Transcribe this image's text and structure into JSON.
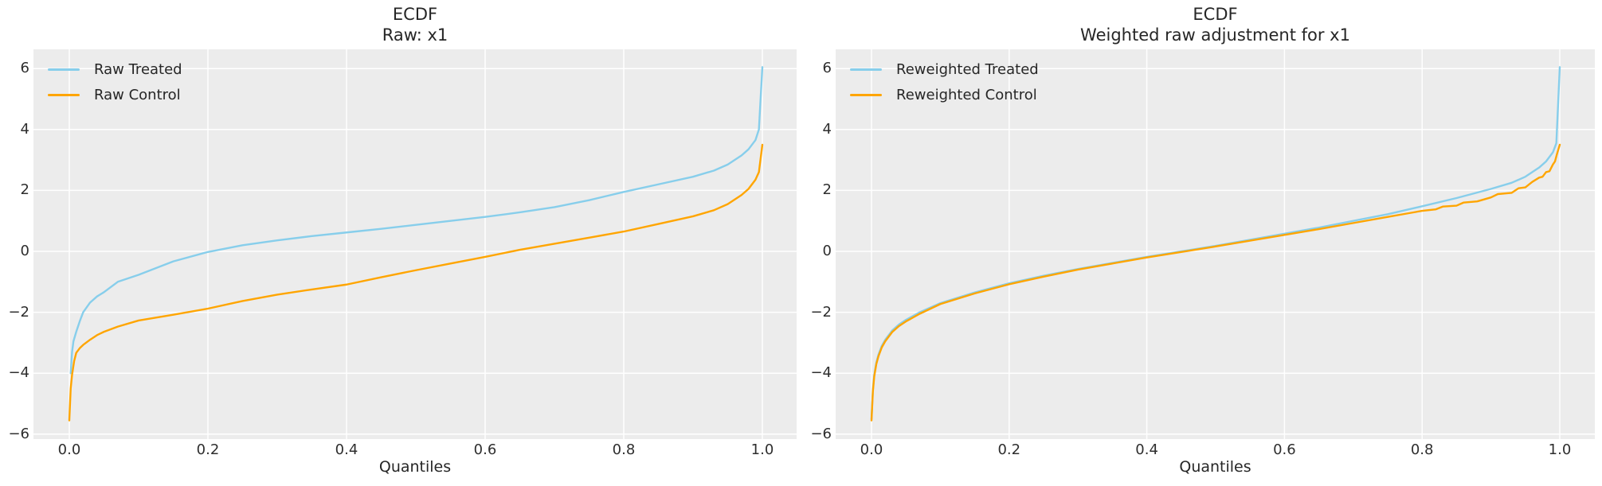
{
  "colors": {
    "figure_background": "#ffffff",
    "plot_background": "#ececec",
    "gridline": "#ffffff",
    "treated_line": "#87ceeb",
    "control_line": "#ffa500",
    "text": "#262626"
  },
  "chart_data": [
    {
      "type": "line",
      "title": "ECDF",
      "subtitle": "Raw: x1",
      "xlabel": "Quantiles",
      "ylabel": "",
      "xlim": [
        -0.05,
        1.05
      ],
      "ylim": [
        -6.2,
        6.6
      ],
      "grid": true,
      "legend_position": "upper left",
      "x_tick_values": [
        0.0,
        0.2,
        0.4,
        0.6,
        0.8,
        1.0
      ],
      "x_tick_labels": [
        "0.0",
        "0.2",
        "0.4",
        "0.6",
        "0.8",
        "1.0"
      ],
      "y_tick_values": [
        6,
        4,
        2,
        0,
        -2,
        -4,
        -6
      ],
      "y_tick_labels": [
        "6",
        "4",
        "2",
        "0",
        "−2",
        "−4",
        "−6"
      ],
      "series": [
        {
          "name": "Raw Treated",
          "color": "#87ceeb",
          "x": [
            0.002,
            0.004,
            0.006,
            0.01,
            0.015,
            0.02,
            0.03,
            0.04,
            0.05,
            0.07,
            0.1,
            0.15,
            0.2,
            0.25,
            0.3,
            0.35,
            0.4,
            0.45,
            0.5,
            0.55,
            0.6,
            0.65,
            0.7,
            0.75,
            0.8,
            0.85,
            0.9,
            0.93,
            0.95,
            0.97,
            0.98,
            0.99,
            0.995,
            1.0
          ],
          "y": [
            -4.0,
            -3.3,
            -2.95,
            -2.64,
            -2.3,
            -2.0,
            -1.68,
            -1.48,
            -1.34,
            -1.0,
            -0.77,
            -0.33,
            -0.02,
            0.2,
            0.36,
            0.5,
            0.62,
            0.74,
            0.87,
            1.0,
            1.13,
            1.28,
            1.45,
            1.68,
            1.95,
            2.2,
            2.45,
            2.65,
            2.85,
            3.15,
            3.35,
            3.65,
            4.0,
            6.05
          ]
        },
        {
          "name": "Raw Control",
          "color": "#ffa500",
          "x": [
            0.0,
            0.002,
            0.004,
            0.007,
            0.01,
            0.015,
            0.02,
            0.03,
            0.04,
            0.05,
            0.07,
            0.1,
            0.15,
            0.2,
            0.25,
            0.3,
            0.35,
            0.4,
            0.45,
            0.5,
            0.55,
            0.6,
            0.65,
            0.7,
            0.75,
            0.8,
            0.85,
            0.9,
            0.93,
            0.95,
            0.97,
            0.98,
            0.99,
            0.995,
            1.0
          ],
          "y": [
            -5.55,
            -4.5,
            -4.05,
            -3.6,
            -3.33,
            -3.18,
            -3.07,
            -2.9,
            -2.75,
            -2.64,
            -2.47,
            -2.27,
            -2.08,
            -1.88,
            -1.63,
            -1.42,
            -1.25,
            -1.09,
            -0.85,
            -0.62,
            -0.4,
            -0.18,
            0.05,
            0.25,
            0.45,
            0.65,
            0.9,
            1.15,
            1.35,
            1.55,
            1.85,
            2.05,
            2.35,
            2.6,
            3.5
          ]
        }
      ]
    },
    {
      "type": "line",
      "title": "ECDF",
      "subtitle": "Weighted raw adjustment for x1",
      "xlabel": "Quantiles",
      "ylabel": "",
      "xlim": [
        -0.05,
        1.05
      ],
      "ylim": [
        -6.2,
        6.6
      ],
      "grid": true,
      "legend_position": "upper left",
      "x_tick_values": [
        0.0,
        0.2,
        0.4,
        0.6,
        0.8,
        1.0
      ],
      "x_tick_labels": [
        "0.0",
        "0.2",
        "0.4",
        "0.6",
        "0.8",
        "1.0"
      ],
      "y_tick_values": [
        6,
        4,
        2,
        0,
        -2,
        -4,
        -6
      ],
      "y_tick_labels": [
        "6",
        "4",
        "2",
        "0",
        "−2",
        "−4",
        "−6"
      ],
      "series": [
        {
          "name": "Reweighted Treated",
          "color": "#87ceeb",
          "x": [
            0.0,
            0.002,
            0.004,
            0.007,
            0.01,
            0.015,
            0.02,
            0.03,
            0.04,
            0.05,
            0.07,
            0.1,
            0.15,
            0.2,
            0.25,
            0.3,
            0.35,
            0.4,
            0.45,
            0.5,
            0.55,
            0.6,
            0.65,
            0.7,
            0.75,
            0.8,
            0.85,
            0.9,
            0.93,
            0.95,
            0.97,
            0.98,
            0.99,
            0.995,
            1.0
          ],
          "y": [
            -5.5,
            -4.55,
            -4.05,
            -3.65,
            -3.4,
            -3.1,
            -2.9,
            -2.6,
            -2.4,
            -2.25,
            -2.0,
            -1.7,
            -1.35,
            -1.05,
            -0.8,
            -0.58,
            -0.38,
            -0.18,
            0.0,
            0.18,
            0.38,
            0.58,
            0.78,
            1.0,
            1.22,
            1.48,
            1.75,
            2.05,
            2.25,
            2.45,
            2.75,
            2.95,
            3.25,
            3.55,
            6.05
          ]
        },
        {
          "name": "Reweighted Control",
          "color": "#ffa500",
          "x": [
            0.0,
            0.002,
            0.004,
            0.007,
            0.01,
            0.015,
            0.02,
            0.03,
            0.04,
            0.05,
            0.07,
            0.1,
            0.15,
            0.2,
            0.25,
            0.3,
            0.35,
            0.4,
            0.45,
            0.5,
            0.55,
            0.6,
            0.65,
            0.7,
            0.75,
            0.78,
            0.8,
            0.82,
            0.83,
            0.85,
            0.86,
            0.88,
            0.9,
            0.91,
            0.93,
            0.94,
            0.95,
            0.96,
            0.97,
            0.975,
            0.98,
            0.985,
            0.99,
            0.993,
            0.996,
            1.0
          ],
          "y": [
            -5.55,
            -4.6,
            -4.1,
            -3.7,
            -3.45,
            -3.15,
            -2.95,
            -2.65,
            -2.45,
            -2.3,
            -2.05,
            -1.73,
            -1.38,
            -1.08,
            -0.83,
            -0.6,
            -0.4,
            -0.2,
            -0.02,
            0.16,
            0.35,
            0.54,
            0.73,
            0.93,
            1.13,
            1.25,
            1.33,
            1.38,
            1.47,
            1.5,
            1.6,
            1.64,
            1.77,
            1.88,
            1.92,
            2.07,
            2.1,
            2.28,
            2.42,
            2.45,
            2.6,
            2.63,
            2.85,
            2.95,
            3.2,
            3.5
          ]
        }
      ]
    }
  ]
}
